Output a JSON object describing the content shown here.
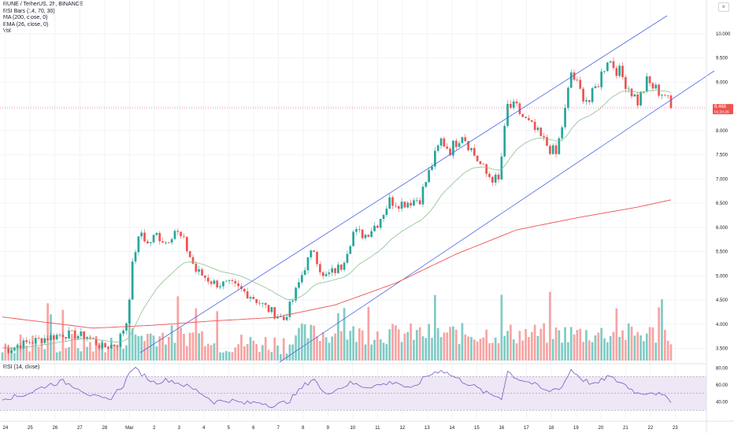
{
  "header": {
    "symbol_line": "RUNE / TetherUS, 2h, BINANCE",
    "indicators": [
      "RSI Bars (14, 70, 30)",
      "MA (200, close, 0)",
      "EMA (26, close, 0)",
      "Vol"
    ]
  },
  "rsi_panel": {
    "label": "RSI (14, close)"
  },
  "price_tag": {
    "value": "8.468",
    "countdown": "01:20:26"
  },
  "colors": {
    "up": "#26a69a",
    "down": "#ef5350",
    "vol_up": "#80cbc4",
    "vol_down": "#f7a4a2",
    "ma200": "#ef5350",
    "ema26": "#8cc08f",
    "channel": "#4e67e6",
    "rsi_line": "#7e57c2",
    "rsi_band": "#ede7f6",
    "grid": "#f0f3fa"
  },
  "chart_data": [
    {
      "type": "candlestick",
      "title": "RUNE / TetherUS, 2h, BINANCE",
      "x_ticks": [
        "24",
        "25",
        "26",
        "27",
        "28",
        "Mar",
        "2",
        "3",
        "4",
        "5",
        "6",
        "7",
        "8",
        "9",
        "10",
        "11",
        "12",
        "13",
        "14",
        "15",
        "16",
        "17",
        "18",
        "19",
        "20",
        "21",
        "22",
        "23"
      ],
      "y_ticks": [
        "3.500",
        "4.000",
        "4.500",
        "5.000",
        "5.500",
        "6.000",
        "6.500",
        "7.000",
        "7.500",
        "8.000",
        "8.500",
        "9.000",
        "9.500",
        "10.000"
      ],
      "ylim": [
        3.25,
        10.6
      ],
      "last_price": 8.468,
      "price_path": [
        [
          0,
          3.52
        ],
        [
          2,
          3.48
        ],
        [
          5,
          3.56
        ],
        [
          10,
          3.65
        ],
        [
          20,
          3.8
        ],
        [
          28,
          3.75
        ],
        [
          33,
          3.52
        ],
        [
          38,
          3.6
        ],
        [
          41,
          4.05
        ],
        [
          42,
          4.6
        ],
        [
          43,
          5.2
        ],
        [
          44,
          5.55
        ],
        [
          46,
          5.9
        ],
        [
          48,
          5.65
        ],
        [
          51,
          5.85
        ],
        [
          54,
          5.7
        ],
        [
          57,
          5.95
        ],
        [
          60,
          5.7
        ],
        [
          64,
          5.1
        ],
        [
          70,
          4.85
        ],
        [
          76,
          4.8
        ],
        [
          82,
          4.6
        ],
        [
          88,
          4.3
        ],
        [
          93,
          4.1
        ],
        [
          96,
          4.5
        ],
        [
          100,
          5.2
        ],
        [
          103,
          5.55
        ],
        [
          106,
          4.95
        ],
        [
          112,
          5.2
        ],
        [
          116,
          5.9
        ],
        [
          120,
          5.85
        ],
        [
          124,
          6.1
        ],
        [
          128,
          6.55
        ],
        [
          132,
          6.5
        ],
        [
          138,
          6.6
        ],
        [
          142,
          7.3
        ],
        [
          145,
          7.8
        ],
        [
          148,
          7.6
        ],
        [
          152,
          7.95
        ],
        [
          156,
          7.5
        ],
        [
          160,
          7.1
        ],
        [
          164,
          6.95
        ],
        [
          167,
          8.5
        ],
        [
          170,
          8.45
        ],
        [
          173,
          8.2
        ],
        [
          176,
          8.0
        ],
        [
          180,
          7.7
        ],
        [
          183,
          7.5
        ],
        [
          186,
          8.4
        ],
        [
          188,
          9.2
        ],
        [
          191,
          8.8
        ],
        [
          194,
          8.6
        ],
        [
          197,
          9.0
        ],
        [
          200,
          9.5
        ],
        [
          204,
          9.2
        ],
        [
          207,
          8.9
        ],
        [
          210,
          8.6
        ],
        [
          213,
          9.0
        ],
        [
          216,
          8.85
        ],
        [
          219,
          8.75
        ],
        [
          221,
          8.468
        ]
      ]
    },
    {
      "type": "line",
      "name": "MA (200, close, 0)",
      "x": [
        0,
        30,
        50,
        70,
        90,
        110,
        130,
        150,
        170,
        190,
        210,
        221
      ],
      "values": [
        4.15,
        3.92,
        3.98,
        4.07,
        4.14,
        4.4,
        4.85,
        5.45,
        5.95,
        6.2,
        6.42,
        6.57
      ]
    },
    {
      "type": "line",
      "name": "RSI (14, close)",
      "ylim": [
        20,
        85
      ],
      "y_ticks": [
        "40.00",
        "60.00",
        "80.00"
      ],
      "bands": [
        30,
        50,
        70
      ],
      "x": [
        0,
        5,
        10,
        15,
        20,
        25,
        30,
        35,
        40,
        43,
        45,
        50,
        55,
        60,
        65,
        70,
        75,
        80,
        85,
        90,
        95,
        100,
        103,
        106,
        110,
        115,
        120,
        125,
        130,
        135,
        140,
        145,
        150,
        155,
        160,
        165,
        167,
        170,
        175,
        180,
        185,
        188,
        192,
        196,
        200,
        205,
        210,
        215,
        221
      ],
      "values": [
        45,
        46,
        52,
        60,
        64,
        57,
        46,
        42,
        60,
        80,
        76,
        63,
        66,
        60,
        52,
        40,
        42,
        38,
        40,
        35,
        42,
        60,
        68,
        50,
        54,
        62,
        58,
        60,
        64,
        54,
        70,
        78,
        68,
        60,
        50,
        45,
        76,
        68,
        62,
        52,
        58,
        78,
        66,
        60,
        70,
        62,
        50,
        52,
        42
      ]
    }
  ]
}
